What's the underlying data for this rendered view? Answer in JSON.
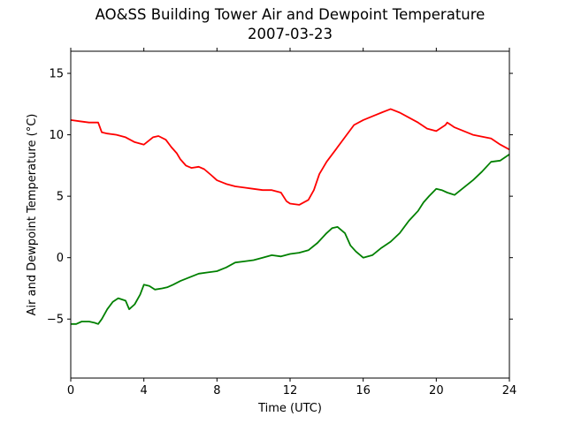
{
  "chart_data": {
    "type": "line",
    "title": "AO&SS Building Tower Air and Dewpoint Temperature",
    "subtitle": "2007-03-23",
    "xlabel": "Time (UTC)",
    "ylabel": "Air and Dewpoint Temperature (°C)",
    "xlim": [
      0,
      24
    ],
    "ylim": [
      -9.8,
      16.8
    ],
    "xticks": [
      0,
      4,
      8,
      12,
      16,
      20,
      24
    ],
    "yticks": [
      -5,
      0,
      5,
      10,
      15
    ],
    "grid": false,
    "legend": "none",
    "series": [
      {
        "color": "#ff0000",
        "x": [
          0,
          0.5,
          1.0,
          1.5,
          1.7,
          2.0,
          2.5,
          3.0,
          3.5,
          4.0,
          4.5,
          4.8,
          5.2,
          5.5,
          5.8,
          6.0,
          6.3,
          6.6,
          7.0,
          7.3,
          7.7,
          8.0,
          8.5,
          9.0,
          9.5,
          10.0,
          10.5,
          11.0,
          11.5,
          11.8,
          12.0,
          12.5,
          13.0,
          13.3,
          13.6,
          14.0,
          14.5,
          15.0,
          15.5,
          16.0,
          16.5,
          17.0,
          17.5,
          18.0,
          18.5,
          19.0,
          19.5,
          20.0,
          20.5,
          20.6,
          21.0,
          22.0,
          23.0,
          23.5,
          24.0
        ],
        "y": [
          11.2,
          11.1,
          11.0,
          11.0,
          10.2,
          10.1,
          10.0,
          9.8,
          9.4,
          9.2,
          9.8,
          9.9,
          9.6,
          9.0,
          8.5,
          8.0,
          7.5,
          7.3,
          7.4,
          7.2,
          6.7,
          6.3,
          6.0,
          5.8,
          5.7,
          5.6,
          5.5,
          5.5,
          5.3,
          4.6,
          4.4,
          4.3,
          4.7,
          5.5,
          6.8,
          7.8,
          8.8,
          9.8,
          10.8,
          11.2,
          11.5,
          11.8,
          12.1,
          11.8,
          11.4,
          11.0,
          10.5,
          10.3,
          10.8,
          11.0,
          10.6,
          10.0,
          9.7,
          9.2,
          8.8
        ]
      },
      {
        "color": "#008000",
        "x": [
          0,
          0.3,
          0.6,
          1.0,
          1.3,
          1.5,
          1.7,
          2.0,
          2.3,
          2.6,
          3.0,
          3.2,
          3.5,
          3.8,
          4.0,
          4.3,
          4.6,
          5.0,
          5.3,
          5.6,
          6.0,
          6.5,
          7.0,
          7.5,
          8.0,
          8.5,
          9.0,
          9.5,
          10.0,
          10.5,
          11.0,
          11.5,
          12.0,
          12.5,
          13.0,
          13.5,
          14.0,
          14.3,
          14.6,
          15.0,
          15.3,
          15.6,
          16.0,
          16.5,
          17.0,
          17.5,
          18.0,
          18.5,
          19.0,
          19.3,
          19.6,
          20.0,
          20.3,
          20.6,
          21.0,
          22.0,
          22.5,
          23.0,
          23.5,
          24.0
        ],
        "y": [
          -5.4,
          -5.4,
          -5.2,
          -5.2,
          -5.3,
          -5.4,
          -5.0,
          -4.2,
          -3.6,
          -3.3,
          -3.5,
          -4.2,
          -3.8,
          -3.0,
          -2.2,
          -2.3,
          -2.6,
          -2.5,
          -2.4,
          -2.2,
          -1.9,
          -1.6,
          -1.3,
          -1.2,
          -1.1,
          -0.8,
          -0.4,
          -0.3,
          -0.2,
          0.0,
          0.2,
          0.1,
          0.3,
          0.4,
          0.6,
          1.2,
          2.0,
          2.4,
          2.5,
          2.0,
          1.0,
          0.5,
          0.0,
          0.2,
          0.8,
          1.3,
          2.0,
          3.0,
          3.8,
          4.5,
          5.0,
          5.6,
          5.5,
          5.3,
          5.1,
          6.3,
          7.0,
          7.8,
          7.9,
          8.4
        ]
      }
    ]
  }
}
